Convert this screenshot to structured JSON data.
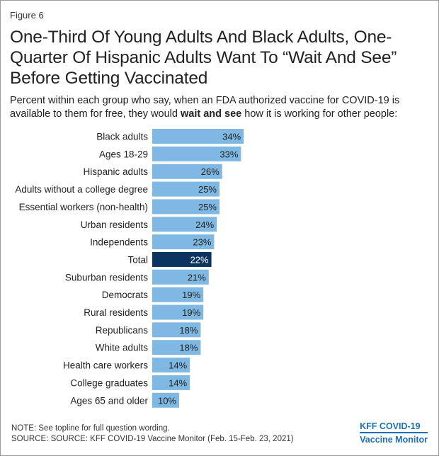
{
  "figure_label": "Figure 6",
  "title": "One-Third Of Young Adults And Black Adults, One-Quarter Of Hispanic Adults Want To “Wait And See” Before Getting Vaccinated",
  "subtitle": {
    "before": "Percent within each group who say, when an FDA authorized vaccine for COVID-19 is available to them for free, they would ",
    "bold": "wait and see",
    "after": " how it is working for other people:"
  },
  "colors": {
    "bar": "#7fb8e3",
    "highlight": "#0b3560",
    "label_dark": "#222222",
    "label_light": "#ffffff",
    "logo": "#1f6fb5"
  },
  "chart_data": {
    "type": "bar",
    "orientation": "horizontal",
    "categories": [
      "Black adults",
      "Ages 18-29",
      "Hispanic adults",
      "Adults without a college degree",
      "Essential workers (non-health)",
      "Urban residents",
      "Independents",
      "Total",
      "Suburban residents",
      "Democrats",
      "Rural residents",
      "Republicans",
      "White adults",
      "Health care workers",
      "College graduates",
      "Ages 65 and older"
    ],
    "values": [
      34,
      33,
      26,
      25,
      25,
      24,
      23,
      22,
      21,
      19,
      19,
      18,
      18,
      14,
      14,
      10
    ],
    "data_labels": [
      "34%",
      "33%",
      "26%",
      "25%",
      "25%",
      "24%",
      "23%",
      "22%",
      "21%",
      "19%",
      "19%",
      "18%",
      "18%",
      "14%",
      "14%",
      "10%"
    ],
    "highlight_category": "Total",
    "xlim": [
      0,
      100
    ],
    "grid": false,
    "legend": "none"
  },
  "footer": {
    "note": "NOTE: See topline for full question wording.",
    "source": "SOURCE: SOURCE: KFF COVID-19 Vaccine Monitor (Feb. 15-Feb. 23, 2021)"
  },
  "logo": {
    "line1": "KFF COVID-19",
    "line2": "Vaccine Monitor"
  }
}
